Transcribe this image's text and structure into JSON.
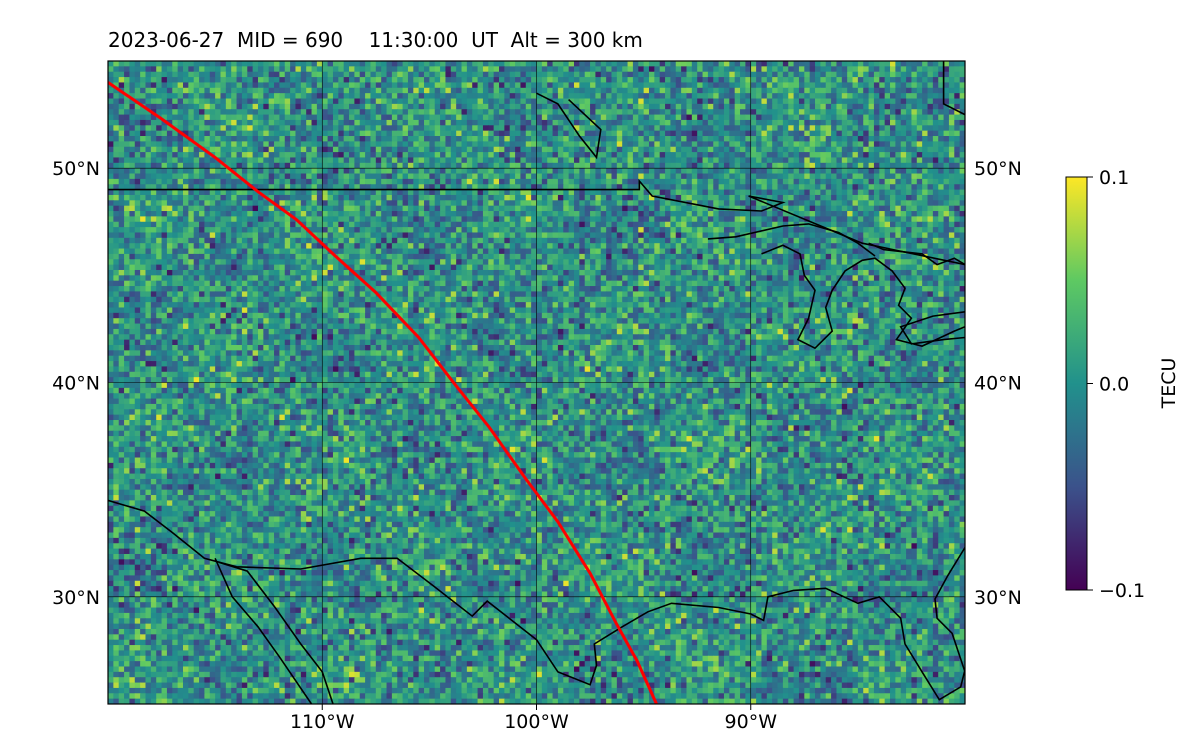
{
  "title": "2023-06-27  MID = 690    11:30:00  UT  Alt = 300 km",
  "colors": {
    "track": "#ff0000",
    "coastline": "#000000",
    "grid": "#000000"
  },
  "colormap": [
    "#440154",
    "#3b528b",
    "#21918c",
    "#5ec962",
    "#fde725"
  ],
  "chart_data": {
    "type": "heatmap",
    "title": "2023-06-27  MID = 690    11:30:00  UT  Alt = 300 km",
    "projection": "lat-lon map",
    "xlim": [
      -120,
      -80
    ],
    "ylim": [
      25,
      55
    ],
    "x_ticks": [
      {
        "value": -110,
        "label": "110°W"
      },
      {
        "value": -100,
        "label": "100°W"
      },
      {
        "value": -90,
        "label": "90°W"
      }
    ],
    "y_ticks": [
      {
        "value": 30,
        "label": "30°N"
      },
      {
        "value": 40,
        "label": "40°N"
      },
      {
        "value": 50,
        "label": "50°N"
      }
    ],
    "grid": true,
    "colorbar": {
      "label": "TECU",
      "vmin": -0.1,
      "vmax": 0.1,
      "ticks": [
        {
          "value": 0.1,
          "label": "0.1"
        },
        {
          "value": 0.0,
          "label": "0.0"
        },
        {
          "value": -0.1,
          "label": "−0.1"
        }
      ],
      "colormap": "viridis"
    },
    "typical_value": 0.0,
    "track": {
      "color": "#ff0000",
      "points": [
        [
          -120.0,
          54.0
        ],
        [
          -117.5,
          52.3
        ],
        [
          -115.0,
          50.5
        ],
        [
          -113.0,
          48.9
        ],
        [
          -111.2,
          47.6
        ],
        [
          -109.5,
          46.0
        ],
        [
          -107.5,
          44.2
        ],
        [
          -105.5,
          42.1
        ],
        [
          -103.8,
          39.9
        ],
        [
          -102.2,
          37.9
        ],
        [
          -100.5,
          35.5
        ],
        [
          -99.0,
          33.5
        ],
        [
          -97.5,
          31.1
        ],
        [
          -96.3,
          28.8
        ],
        [
          -95.3,
          27.0
        ],
        [
          -94.4,
          25.0
        ]
      ]
    },
    "coastlines": [
      [
        [
          -120.0,
          49.0
        ],
        [
          -95.2,
          49.0
        ],
        [
          -95.2,
          49.4
        ],
        [
          -94.6,
          48.7
        ],
        [
          -91.5,
          48.1
        ],
        [
          -89.5,
          48.0
        ],
        [
          -88.5,
          48.4
        ],
        [
          -90.1,
          48.7
        ],
        [
          -86.0,
          47.0
        ],
        [
          -84.8,
          46.5
        ],
        [
          -80.0,
          45.5
        ]
      ],
      [
        [
          -92.0,
          46.7
        ],
        [
          -90.7,
          46.8
        ],
        [
          -88.5,
          47.3
        ],
        [
          -87.3,
          47.4
        ],
        [
          -85.9,
          47.0
        ],
        [
          -85.0,
          46.5
        ],
        [
          -84.2,
          45.9
        ]
      ],
      [
        [
          -89.5,
          46.0
        ],
        [
          -88.5,
          46.4
        ],
        [
          -87.7,
          46.0
        ],
        [
          -87.5,
          45.0
        ],
        [
          -87.0,
          44.3
        ],
        [
          -87.3,
          43.0
        ],
        [
          -87.8,
          42.0
        ],
        [
          -87.0,
          41.6
        ],
        [
          -86.2,
          42.4
        ],
        [
          -86.5,
          43.5
        ],
        [
          -86.2,
          44.3
        ],
        [
          -85.6,
          45.2
        ],
        [
          -84.8,
          45.7
        ],
        [
          -84.2,
          45.8
        ],
        [
          -83.4,
          45.2
        ],
        [
          -82.8,
          44.4
        ],
        [
          -83.1,
          43.6
        ],
        [
          -82.5,
          43.0
        ],
        [
          -83.2,
          42.0
        ],
        [
          -82.0,
          41.7
        ],
        [
          -80.5,
          42.4
        ],
        [
          -80.0,
          42.6
        ]
      ],
      [
        [
          -84.5,
          46.5
        ],
        [
          -83.8,
          46.2
        ],
        [
          -82.0,
          46.0
        ],
        [
          -81.3,
          45.5
        ],
        [
          -80.5,
          45.8
        ],
        [
          -80.0,
          45.5
        ]
      ],
      [
        [
          -80.0,
          43.3
        ],
        [
          -81.5,
          43.1
        ],
        [
          -83.0,
          42.6
        ],
        [
          -82.5,
          41.8
        ],
        [
          -81.0,
          42.0
        ],
        [
          -80.0,
          42.1
        ]
      ],
      [
        [
          -120.0,
          34.5
        ],
        [
          -118.3,
          34.0
        ],
        [
          -117.0,
          33.0
        ],
        [
          -115.5,
          31.8
        ],
        [
          -114.0,
          31.4
        ],
        [
          -111.0,
          31.3
        ],
        [
          -108.2,
          31.8
        ],
        [
          -106.5,
          31.8
        ],
        [
          -104.8,
          30.5
        ],
        [
          -103.0,
          29.1
        ],
        [
          -102.3,
          29.8
        ],
        [
          -100.0,
          28.0
        ],
        [
          -99.0,
          26.5
        ],
        [
          -97.5,
          25.9
        ],
        [
          -97.2,
          26.8
        ],
        [
          -97.3,
          27.8
        ],
        [
          -96.0,
          28.6
        ],
        [
          -94.8,
          29.3
        ],
        [
          -93.7,
          29.7
        ],
        [
          -91.5,
          29.5
        ],
        [
          -90.0,
          29.2
        ],
        [
          -89.4,
          28.9
        ],
        [
          -89.2,
          30.0
        ],
        [
          -88.0,
          30.3
        ],
        [
          -86.5,
          30.4
        ],
        [
          -85.0,
          29.7
        ],
        [
          -84.0,
          30.0
        ],
        [
          -83.0,
          29.0
        ],
        [
          -82.8,
          27.8
        ],
        [
          -82.0,
          26.5
        ],
        [
          -81.2,
          25.2
        ],
        [
          -80.2,
          25.8
        ],
        [
          -80.0,
          26.6
        ]
      ],
      [
        [
          -114.8,
          31.6
        ],
        [
          -113.5,
          31.2
        ],
        [
          -112.2,
          29.5
        ],
        [
          -111.0,
          27.8
        ],
        [
          -110.0,
          26.5
        ],
        [
          -109.5,
          25.0
        ]
      ],
      [
        [
          -115.0,
          31.8
        ],
        [
          -114.2,
          30.0
        ],
        [
          -113.0,
          28.6
        ],
        [
          -112.0,
          27.2
        ],
        [
          -110.5,
          25.0
        ]
      ],
      [
        [
          -80.0,
          32.3
        ],
        [
          -80.8,
          31.0
        ],
        [
          -81.4,
          29.9
        ],
        [
          -81.3,
          29.0
        ],
        [
          -80.6,
          28.3
        ],
        [
          -80.0,
          26.5
        ]
      ],
      [
        [
          -100.0,
          53.5
        ],
        [
          -99.0,
          53.0
        ],
        [
          -98.0,
          51.5
        ],
        [
          -97.2,
          50.5
        ],
        [
          -97.0,
          51.8
        ],
        [
          -98.5,
          53.2
        ]
      ],
      [
        [
          -81.0,
          55.0
        ],
        [
          -81.0,
          53.0
        ],
        [
          -80.0,
          52.5
        ]
      ]
    ]
  }
}
